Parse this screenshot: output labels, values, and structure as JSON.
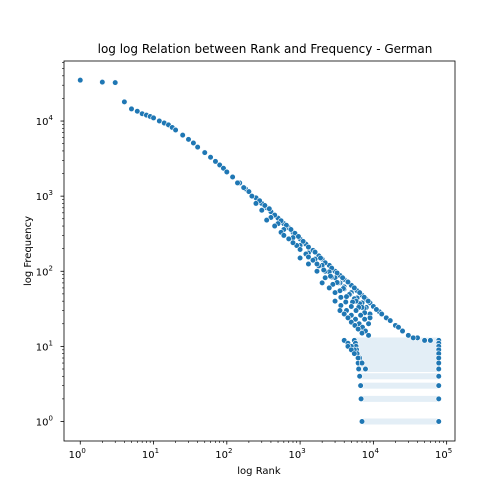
{
  "chart_data": {
    "type": "scatter",
    "title": "log log Relation between Rank and Frequency - German",
    "xlabel": "log Rank",
    "ylabel": "log Frequency",
    "xscale": "log",
    "yscale": "log",
    "xlim": [
      0.6,
      130000
    ],
    "ylim": [
      0.55,
      63000
    ],
    "x_ticks": [
      {
        "value": 1,
        "base": "10",
        "exp": "0"
      },
      {
        "value": 10,
        "base": "10",
        "exp": "1"
      },
      {
        "value": 100,
        "base": "10",
        "exp": "2"
      },
      {
        "value": 1000,
        "base": "10",
        "exp": "3"
      },
      {
        "value": 10000,
        "base": "10",
        "exp": "4"
      },
      {
        "value": 100000,
        "base": "10",
        "exp": "5"
      }
    ],
    "y_ticks": [
      {
        "value": 1,
        "base": "10",
        "exp": "0"
      },
      {
        "value": 10,
        "base": "10",
        "exp": "1"
      },
      {
        "value": 100,
        "base": "10",
        "exp": "2"
      },
      {
        "value": 1000,
        "base": "10",
        "exp": "3"
      },
      {
        "value": 10000,
        "base": "10",
        "exp": "4"
      }
    ],
    "grid": false,
    "marker_color": "#1f77b4",
    "marker_edge_color": "#ffffff",
    "series": [
      {
        "points": [
          [
            1,
            35000
          ],
          [
            2,
            33000
          ],
          [
            3,
            32500
          ],
          [
            4,
            18000
          ],
          [
            5,
            14500
          ],
          [
            6,
            13500
          ],
          [
            7,
            12500
          ],
          [
            8,
            12000
          ],
          [
            9,
            11500
          ],
          [
            10,
            11000
          ],
          [
            12,
            10000
          ],
          [
            14,
            9400
          ],
          [
            16,
            8900
          ],
          [
            18,
            8200
          ],
          [
            20,
            7600
          ],
          [
            25,
            6500
          ],
          [
            30,
            5700
          ],
          [
            35,
            5100
          ],
          [
            40,
            4500
          ],
          [
            50,
            3800
          ],
          [
            60,
            3300
          ],
          [
            70,
            2900
          ],
          [
            80,
            2600
          ],
          [
            90,
            2350
          ],
          [
            100,
            2100
          ],
          [
            120,
            1800
          ],
          [
            150,
            1500
          ],
          [
            180,
            1250
          ],
          [
            200,
            1150
          ],
          [
            250,
            950
          ],
          [
            300,
            800
          ],
          [
            350,
            700
          ],
          [
            400,
            620
          ],
          [
            500,
            510
          ],
          [
            600,
            430
          ],
          [
            700,
            380
          ],
          [
            800,
            330
          ],
          [
            900,
            300
          ],
          [
            1000,
            270
          ],
          [
            1200,
            230
          ],
          [
            1500,
            190
          ],
          [
            1800,
            160
          ],
          [
            2000,
            145
          ],
          [
            2500,
            120
          ],
          [
            3000,
            100
          ],
          [
            3500,
            88
          ],
          [
            4000,
            78
          ],
          [
            5000,
            65
          ],
          [
            6000,
            55
          ],
          [
            7000,
            48
          ],
          [
            8000,
            42
          ],
          [
            9000,
            38
          ],
          [
            10000,
            34
          ],
          [
            12000,
            29
          ],
          [
            15000,
            24
          ],
          [
            20000,
            19
          ],
          [
            25000,
            16
          ],
          [
            30000,
            14
          ],
          [
            40000,
            13
          ],
          [
            50000,
            12
          ],
          [
            60000,
            12
          ],
          [
            140,
            1500
          ],
          [
            170,
            1300
          ],
          [
            220,
            1000
          ],
          [
            280,
            870
          ],
          [
            330,
            750
          ],
          [
            380,
            680
          ],
          [
            450,
            560
          ],
          [
            550,
            470
          ],
          [
            650,
            410
          ],
          [
            750,
            360
          ],
          [
            850,
            320
          ],
          [
            950,
            290
          ],
          [
            1100,
            250
          ],
          [
            1300,
            210
          ],
          [
            1600,
            180
          ],
          [
            1900,
            150
          ],
          [
            2200,
            130
          ],
          [
            2700,
            110
          ],
          [
            3200,
            95
          ],
          [
            3800,
            82
          ],
          [
            4500,
            72
          ],
          [
            5500,
            60
          ],
          [
            6500,
            52
          ],
          [
            7500,
            45
          ],
          [
            8500,
            40
          ],
          [
            11000,
            31
          ],
          [
            13000,
            27
          ],
          [
            17000,
            22
          ],
          [
            22000,
            18
          ],
          [
            35000,
            13
          ],
          [
            250,
            800
          ],
          [
            300,
            650
          ],
          [
            400,
            520
          ],
          [
            500,
            430
          ],
          [
            600,
            360
          ],
          [
            800,
            280
          ],
          [
            1000,
            220
          ],
          [
            1300,
            175
          ],
          [
            1600,
            145
          ],
          [
            2000,
            120
          ],
          [
            2500,
            98
          ],
          [
            3000,
            82
          ],
          [
            3500,
            70
          ],
          [
            4000,
            62
          ],
          [
            5000,
            52
          ],
          [
            6000,
            44
          ],
          [
            7000,
            38
          ],
          [
            8000,
            33
          ],
          [
            350,
            480
          ],
          [
            450,
            400
          ],
          [
            550,
            330
          ],
          [
            700,
            270
          ],
          [
            900,
            220
          ],
          [
            1200,
            170
          ],
          [
            1500,
            140
          ],
          [
            1800,
            118
          ],
          [
            2200,
            100
          ],
          [
            2700,
            84
          ],
          [
            3300,
            70
          ],
          [
            4000,
            58
          ],
          [
            4800,
            49
          ],
          [
            5500,
            43
          ],
          [
            6500,
            37
          ],
          [
            7500,
            32
          ],
          [
            9000,
            27
          ],
          [
            600,
            300
          ],
          [
            800,
            240
          ],
          [
            1000,
            195
          ],
          [
            1300,
            155
          ],
          [
            1700,
            125
          ],
          [
            2100,
            104
          ],
          [
            2600,
            86
          ],
          [
            3200,
            71
          ],
          [
            3900,
            59
          ],
          [
            4700,
            49
          ],
          [
            5800,
            40
          ],
          [
            7000,
            33
          ],
          [
            1000,
            150
          ],
          [
            1300,
            125
          ],
          [
            1700,
            100
          ],
          [
            2200,
            82
          ],
          [
            2800,
            67
          ],
          [
            3500,
            55
          ],
          [
            4300,
            46
          ],
          [
            5200,
            39
          ],
          [
            6300,
            33
          ],
          [
            7600,
            28
          ],
          [
            9000,
            24
          ],
          [
            2000,
            70
          ],
          [
            2500,
            60
          ],
          [
            3000,
            52
          ],
          [
            3600,
            45
          ],
          [
            4200,
            39
          ],
          [
            5000,
            34
          ],
          [
            5800,
            30
          ],
          [
            6700,
            26
          ],
          [
            7600,
            23
          ],
          [
            8600,
            20
          ],
          [
            3000,
            40
          ],
          [
            3600,
            35
          ],
          [
            4300,
            30
          ],
          [
            5000,
            26
          ],
          [
            5700,
            23
          ],
          [
            6400,
            20
          ],
          [
            7100,
            18
          ],
          [
            7800,
            16
          ],
          [
            8600,
            14
          ],
          [
            3500,
            30
          ],
          [
            4000,
            27
          ],
          [
            4500,
            24
          ],
          [
            5000,
            21
          ],
          [
            5600,
            19
          ],
          [
            6200,
            17
          ],
          [
            7000,
            15
          ],
          [
            4000,
            12
          ],
          [
            4500,
            11
          ],
          [
            5000,
            10
          ],
          [
            5500,
            9
          ],
          [
            6000,
            8
          ],
          [
            6500,
            7
          ],
          [
            7000,
            6
          ],
          [
            4500,
            10
          ],
          [
            5000,
            9
          ],
          [
            5500,
            8
          ],
          [
            6200,
            7
          ],
          [
            7000,
            6
          ],
          [
            7800,
            5
          ]
        ],
        "bands": [
          {
            "y": 12,
            "x_start": 5500,
            "x_end": 78000
          },
          {
            "y": 11,
            "x_start": 5700,
            "x_end": 78000
          },
          {
            "y": 10,
            "x_start": 5800,
            "x_end": 78000
          },
          {
            "y": 9,
            "x_start": 5900,
            "x_end": 78000
          },
          {
            "y": 8,
            "x_start": 6000,
            "x_end": 78000
          },
          {
            "y": 7,
            "x_start": 6100,
            "x_end": 78000
          },
          {
            "y": 6,
            "x_start": 6200,
            "x_end": 78000
          },
          {
            "y": 5,
            "x_start": 6300,
            "x_end": 78000
          },
          {
            "y": 4,
            "x_start": 6500,
            "x_end": 78000
          },
          {
            "y": 3,
            "x_start": 6700,
            "x_end": 78000
          },
          {
            "y": 2,
            "x_start": 6800,
            "x_end": 78000
          },
          {
            "y": 1,
            "x_start": 7000,
            "x_end": 78000
          }
        ]
      }
    ]
  }
}
